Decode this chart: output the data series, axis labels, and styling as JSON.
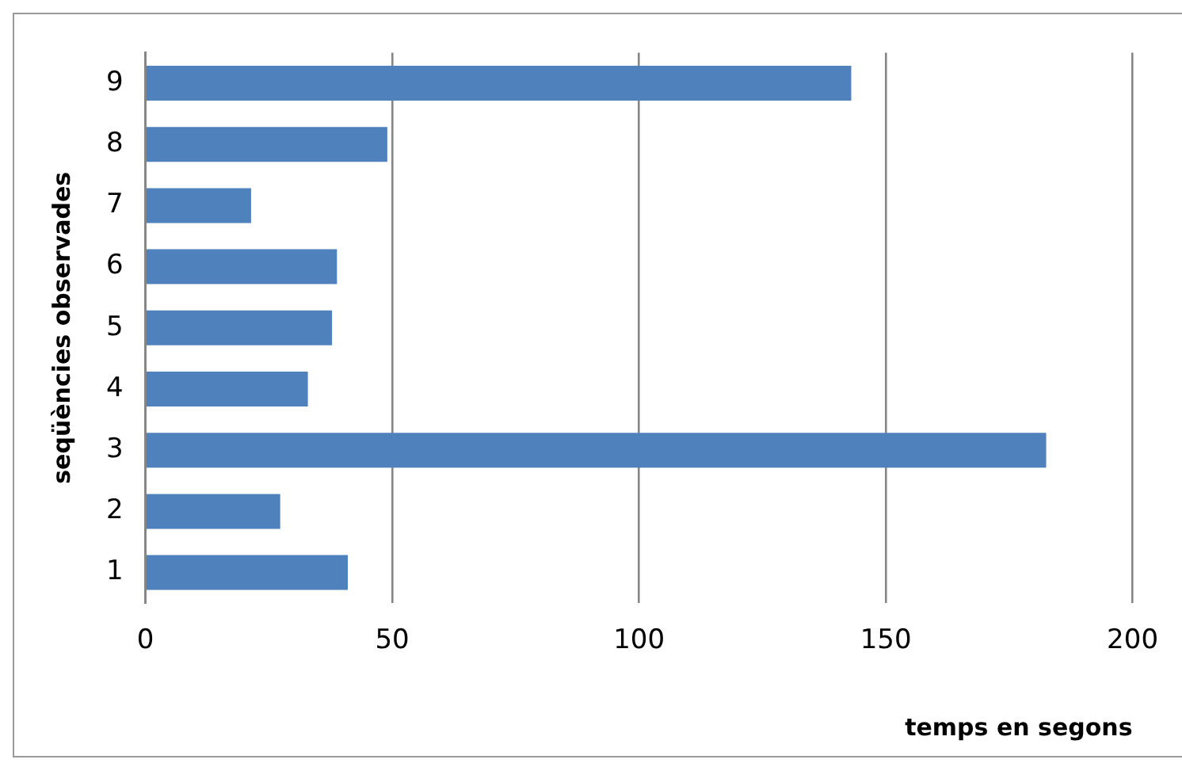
{
  "chart_data": {
    "type": "bar",
    "orientation": "horizontal",
    "categories": [
      "9",
      "8",
      "7",
      "6",
      "5",
      "4",
      "3",
      "2",
      "1"
    ],
    "values": [
      143,
      49,
      21.4,
      38.8,
      37.8,
      32.9,
      182.5,
      27.3,
      41
    ],
    "color": "#4f81bd",
    "xlim": [
      0,
      200
    ],
    "xticks": [
      0,
      50,
      100,
      150,
      200
    ],
    "grid": "x",
    "legend": false,
    "xlabel": "temps en segons",
    "ylabel": "seqüències observades"
  }
}
